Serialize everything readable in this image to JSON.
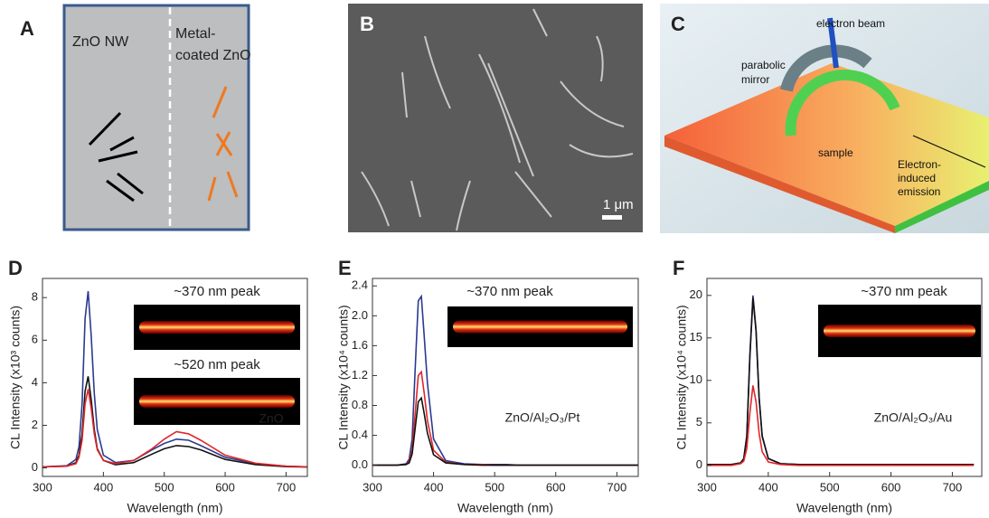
{
  "panels": {
    "A": {
      "label": "A",
      "left_text": "ZnO NW",
      "right_text_lines": [
        "Metal-",
        "coated ZnO"
      ]
    },
    "B": {
      "label": "B",
      "scale_bar": "1 μm"
    },
    "C": {
      "label": "C",
      "callouts": [
        "electron beam",
        "parabolic",
        "mirror",
        "sample",
        "Electron-",
        "induced",
        "emission"
      ]
    }
  },
  "chart_data": [
    {
      "type": "line",
      "panel_label": "D",
      "xlabel": "Wavelength (nm)",
      "ylabel": "CL Intensity (x10³ counts)",
      "annotation": "ZnO",
      "inset_labels": [
        "~370 nm peak",
        "~520 nm peak"
      ],
      "x": [
        300,
        340,
        355,
        360,
        365,
        370,
        375,
        380,
        385,
        390,
        400,
        420,
        450,
        480,
        500,
        520,
        540,
        560,
        600,
        650,
        700,
        735
      ],
      "series": [
        {
          "color": "#2b3a8f",
          "values": [
            0.05,
            0.1,
            0.4,
            1.0,
            3.0,
            7.0,
            8.3,
            6.2,
            3.5,
            1.8,
            0.6,
            0.25,
            0.35,
            0.85,
            1.15,
            1.35,
            1.3,
            1.05,
            0.5,
            0.2,
            0.08,
            0.05
          ]
        },
        {
          "color": "#111111",
          "values": [
            0.05,
            0.08,
            0.25,
            0.6,
            1.6,
            3.6,
            4.3,
            3.2,
            1.8,
            0.9,
            0.35,
            0.15,
            0.25,
            0.65,
            0.9,
            1.05,
            1.0,
            0.85,
            0.4,
            0.15,
            0.06,
            0.04
          ]
        },
        {
          "color": "#e0262a",
          "values": [
            0.05,
            0.08,
            0.2,
            0.5,
            1.3,
            3.0,
            3.7,
            2.8,
            1.6,
            0.85,
            0.35,
            0.2,
            0.35,
            0.9,
            1.35,
            1.7,
            1.6,
            1.3,
            0.6,
            0.22,
            0.08,
            0.05
          ]
        }
      ],
      "xlim": [
        300,
        735
      ],
      "xticks": [
        300,
        400,
        500,
        600,
        700
      ],
      "ylim": [
        -0.4,
        8.9
      ],
      "yticks": [
        0,
        2,
        4,
        6,
        8
      ]
    },
    {
      "type": "line",
      "panel_label": "E",
      "xlabel": "Wavelength (nm)",
      "ylabel": "CL Intensity (x10⁴ counts)",
      "annotation": "ZnO/Al₂O₃/Pt",
      "inset_labels": [
        "~370 nm peak"
      ],
      "x": [
        300,
        340,
        355,
        360,
        365,
        370,
        375,
        380,
        385,
        390,
        400,
        420,
        450,
        480,
        500,
        520,
        540,
        560,
        600,
        650,
        700,
        735
      ],
      "series": [
        {
          "color": "#2b3a8f",
          "values": [
            0,
            0,
            0.02,
            0.08,
            0.35,
            1.3,
            2.2,
            2.26,
            1.7,
            1.1,
            0.35,
            0.06,
            0.02,
            0.01,
            0.01,
            0.01,
            0,
            0,
            0,
            0,
            0,
            0
          ]
        },
        {
          "color": "#e0262a",
          "values": [
            0,
            0,
            0.01,
            0.05,
            0.2,
            0.7,
            1.2,
            1.25,
            0.95,
            0.6,
            0.2,
            0.04,
            0.01,
            0.01,
            0,
            0,
            0,
            0,
            0,
            0,
            0,
            0
          ]
        },
        {
          "color": "#111111",
          "values": [
            0,
            0,
            0.01,
            0.03,
            0.15,
            0.5,
            0.85,
            0.9,
            0.68,
            0.43,
            0.14,
            0.03,
            0.01,
            0,
            0,
            0,
            0,
            0,
            0,
            0,
            0,
            0
          ]
        }
      ],
      "xlim": [
        300,
        735
      ],
      "xticks": [
        300,
        400,
        500,
        600,
        700
      ],
      "ylim": [
        -0.15,
        2.5
      ],
      "yticks": [
        {
          "value": 0,
          "label": "0.0"
        },
        0.4,
        0.8,
        1.2,
        1.6,
        {
          "value": 2,
          "label": "2.0"
        },
        2.4
      ]
    },
    {
      "type": "line",
      "panel_label": "F",
      "xlabel": "Wavelength (nm)",
      "ylabel": "CL Intensity (x10⁴ counts)",
      "annotation": "ZnO/Al₂O₃/Au",
      "inset_labels": [
        "~370 nm peak"
      ],
      "x": [
        300,
        340,
        355,
        360,
        365,
        370,
        375,
        380,
        385,
        390,
        400,
        420,
        450,
        480,
        500,
        520,
        540,
        560,
        600,
        650,
        700,
        735
      ],
      "series": [
        {
          "color": "#2b3a8f",
          "values": [
            0.1,
            0.1,
            0.3,
            0.8,
            3.5,
            13,
            20,
            16,
            8,
            3.5,
            0.8,
            0.2,
            0.1,
            0.1,
            0.1,
            0.1,
            0.1,
            0.1,
            0.1,
            0.1,
            0.1,
            0.1
          ]
        },
        {
          "color": "#111111",
          "values": [
            0.1,
            0.1,
            0.3,
            0.8,
            3.4,
            12.8,
            19.7,
            15.8,
            7.9,
            3.4,
            0.8,
            0.2,
            0.1,
            0.1,
            0.1,
            0.1,
            0.1,
            0.1,
            0.1,
            0.1,
            0.1,
            0.1
          ]
        },
        {
          "color": "#e0262a",
          "values": [
            0,
            0,
            0.2,
            0.5,
            2,
            6.2,
            9.4,
            7.5,
            3.8,
            1.6,
            0.4,
            0.1,
            0,
            0,
            0,
            0,
            0,
            0,
            0,
            0,
            0,
            0
          ]
        }
      ],
      "xlim": [
        300,
        748
      ],
      "xticks": [
        300,
        400,
        500,
        600,
        700
      ],
      "ylim": [
        -1.3,
        22
      ],
      "yticks": [
        0,
        5,
        10,
        15,
        20
      ]
    }
  ]
}
